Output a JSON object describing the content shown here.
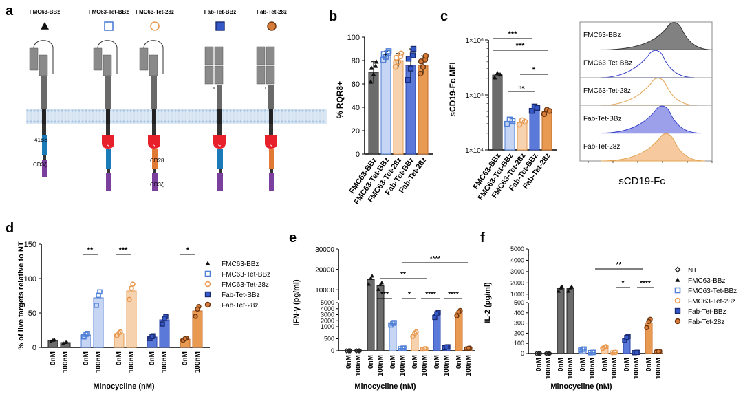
{
  "colors": {
    "dark": "#6b6b6b",
    "blue": "#4f7fd6",
    "blue_light": "#c5d5f3",
    "orange": "#e89a52",
    "orange_light": "#f6d3ae",
    "navy": "#2b44a8",
    "brown": "#c46a2c",
    "membrane": "#c9dcee",
    "cd3z": "#7b3f9e",
    "bb41": "#1b7ab8",
    "cd28": "#e07a35",
    "switch": "#e8202b"
  },
  "panel_a": {
    "letter": "a",
    "constructs": [
      {
        "name": "FMC63-BBz",
        "marker": "triangle"
      },
      {
        "name": "FMC63-Tet-BBz",
        "marker": "square-open"
      },
      {
        "name": "FMC63-Tet-28z",
        "marker": "circle-open"
      },
      {
        "name": "Fab-Tet-BBz",
        "marker": "square-filled"
      },
      {
        "name": "Fab-Tet-28z",
        "marker": "circle-filled"
      }
    ],
    "domain_labels": {
      "bb41": "41BB",
      "cd3z_1": "CD3ζ",
      "cd28": "CD28",
      "cd3z_2": "CD3ζ"
    }
  },
  "chart_data": [
    {
      "panel": "b",
      "type": "bar",
      "ylabel": "% RQR8+",
      "ylim": [
        0,
        100
      ],
      "yticks": [
        "0",
        "20",
        "40",
        "60",
        "80",
        "100"
      ],
      "categories": [
        "FMC63-BBz",
        "FMC63-Tet-BBz",
        "FMC63-Tet-28z",
        "Fab-Tet-BBz",
        "Fab-Tet-28z"
      ],
      "values": [
        70,
        84,
        80,
        76,
        76
      ],
      "err": [
        9,
        4,
        6,
        14,
        8
      ]
    },
    {
      "panel": "c",
      "type": "bar",
      "ylabel": "sCD19-Fc MFI",
      "scale": "log",
      "ylim": [
        10000,
        1000000
      ],
      "yticks": [
        "1×10⁴",
        "1×10⁵",
        "1×10⁶"
      ],
      "categories": [
        "FMC63-BBz",
        "FMC63-Tet-BBz",
        "FMC63-Tet-28z",
        "Fab-Tet-BBz",
        "Fab-Tet-28z"
      ],
      "values": [
        230000,
        33000,
        32000,
        57000,
        50000
      ],
      "sig": [
        "***",
        "***",
        "*",
        "ns"
      ]
    },
    {
      "panel": "c-histogram",
      "type": "area",
      "xlabel": "sCD19-Fc",
      "tracks": [
        "FMC63-BBz",
        "FMC63-Tet-BBz",
        "FMC63-Tet-28z",
        "Fab-Tet-BBz",
        "Fab-Tet-28z"
      ]
    },
    {
      "panel": "d",
      "type": "bar",
      "ylabel": "% of live targets relative to NT",
      "xlabel": "Minocycline (nM)",
      "ylim": [
        0,
        150
      ],
      "yticks": [
        "0",
        "50",
        "100",
        "150"
      ],
      "ticklabels": [
        "0nM",
        "100nM"
      ],
      "groups": [
        {
          "name": "FMC63-BBz",
          "values": [
            10,
            7
          ]
        },
        {
          "name": "FMC63-Tet-BBz",
          "values": [
            18,
            72
          ]
        },
        {
          "name": "FMC63-Tet-28z",
          "values": [
            20,
            82
          ]
        },
        {
          "name": "Fab-Tet-BBz",
          "values": [
            15,
            40
          ]
        },
        {
          "name": "Fab-Tet-28z",
          "values": [
            12,
            53
          ]
        }
      ],
      "sig": [
        "**",
        "***",
        "*"
      ],
      "legend": [
        "FMC63-BBz",
        "FMC63-Tet-BBz",
        "FMC63-Tet-28z",
        "Fab-Tet-BBz",
        "Fab-Tet-28z"
      ]
    },
    {
      "panel": "e",
      "type": "bar",
      "ylabel": "IFN-γ (pg/ml)",
      "xlabel": "Minocycline (nM)",
      "yticks_upper": [
        "10000",
        "20000",
        "30000"
      ],
      "yticks_lower": [
        "0",
        "500",
        "1000",
        "2000",
        "3000",
        "4000",
        "5000"
      ],
      "ticklabels": [
        "0nM",
        "100nM"
      ],
      "groups": [
        {
          "name": "NT",
          "values": [
            0,
            0
          ]
        },
        {
          "name": "FMC63-BBz",
          "values": [
            15000,
            12000
          ]
        },
        {
          "name": "FMC63-Tet-BBz",
          "values": [
            1500,
            100
          ]
        },
        {
          "name": "FMC63-Tet-28z",
          "values": [
            700,
            80
          ]
        },
        {
          "name": "Fab-Tet-BBz",
          "values": [
            3000,
            150
          ]
        },
        {
          "name": "Fab-Tet-28z",
          "values": [
            3300,
            100
          ]
        }
      ],
      "sig": [
        "****",
        "**",
        "***",
        "*",
        "****",
        "****"
      ]
    },
    {
      "panel": "f",
      "type": "bar",
      "ylabel": "IL-2 (pg/ml)",
      "xlabel": "Minocycline (nM)",
      "yticks_upper": [
        "1000",
        "2000",
        "3000",
        "4000",
        "5000"
      ],
      "yticks_lower": [
        "0",
        "100",
        "200",
        "300",
        "400",
        "500"
      ],
      "ticklabels": [
        "0nM",
        "100nM"
      ],
      "groups": [
        {
          "name": "NT",
          "values": [
            0,
            0
          ]
        },
        {
          "name": "FMC63-BBz",
          "values": [
            1500,
            1500
          ]
        },
        {
          "name": "FMC63-Tet-BBz",
          "values": [
            40,
            10
          ]
        },
        {
          "name": "FMC63-Tet-28z",
          "values": [
            60,
            10
          ]
        },
        {
          "name": "Fab-Tet-BBz",
          "values": [
            150,
            10
          ]
        },
        {
          "name": "Fab-Tet-28z",
          "values": [
            300,
            20
          ]
        }
      ],
      "sig": [
        "**",
        "*",
        "****"
      ],
      "legend": [
        "NT",
        "FMC63-BBz",
        "FMC63-Tet-BBz",
        "FMC63-Tet-28z",
        "Fab-Tet-BBz",
        "Fab-Tet-28z"
      ]
    }
  ]
}
